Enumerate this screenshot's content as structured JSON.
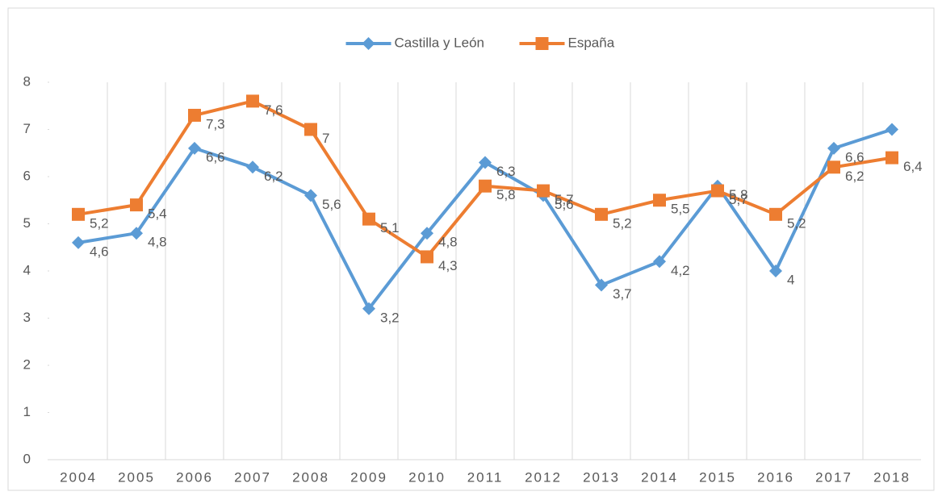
{
  "chart_data": {
    "type": "line",
    "categories": [
      "2004",
      "2005",
      "2006",
      "2007",
      "2008",
      "2009",
      "2010",
      "2011",
      "2012",
      "2013",
      "2014",
      "2015",
      "2016",
      "2017",
      "2018"
    ],
    "series": [
      {
        "name": "Castilla y León",
        "color": "#5b9bd5",
        "marker": "diamond",
        "values": [
          4.6,
          4.8,
          6.6,
          6.2,
          5.6,
          3.2,
          4.8,
          6.3,
          5.6,
          3.7,
          4.2,
          5.8,
          4,
          6.6,
          7
        ],
        "value_labels": [
          "4,6",
          "4,8",
          "6,6",
          "6,2",
          "5,6",
          "3,2",
          "4,8",
          "6,3",
          "5,6",
          "3,7",
          "4,2",
          "5,8",
          "4",
          "6,6",
          null
        ]
      },
      {
        "name": "España",
        "color": "#ed7d31",
        "marker": "square",
        "values": [
          5.2,
          5.4,
          7.3,
          7.6,
          7,
          5.1,
          4.3,
          5.8,
          5.7,
          5.2,
          5.5,
          5.7,
          5.2,
          6.2,
          6.4
        ],
        "value_labels": [
          "5,2",
          "5,4",
          "7,3",
          "7,6",
          "7",
          "5,1",
          "4,3",
          "5,8",
          "5,7",
          "5,2",
          "5,5",
          "5,7",
          "5,2",
          "6,2",
          "6,4"
        ]
      }
    ],
    "ylim": [
      0,
      8
    ],
    "yticks": [
      0,
      1,
      2,
      3,
      4,
      5,
      6,
      7,
      8
    ],
    "grid": "vertical",
    "legend": "top"
  }
}
